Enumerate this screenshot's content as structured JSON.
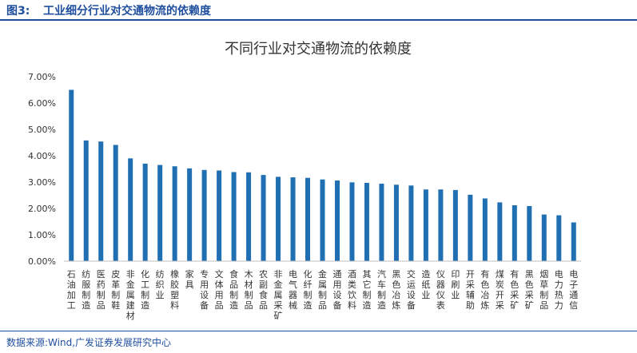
{
  "figure": {
    "label": "图3:",
    "title": "工业细分行业对交通物流的依赖度",
    "source": "数据来源:Wind,广发证券发展研究中心"
  },
  "colors": {
    "bar": "#1F6FB2",
    "header": "#1F4E9E",
    "axis": "#BFBFBF"
  },
  "chart_data": {
    "type": "bar",
    "title": "不同行业对交通物流的依赖度",
    "xlabel": "",
    "ylabel": "",
    "ylim": [
      0,
      0.07
    ],
    "yticks": [
      "0.00%",
      "1.00%",
      "2.00%",
      "3.00%",
      "4.00%",
      "5.00%",
      "6.00%",
      "7.00%"
    ],
    "grid": false,
    "legend": "none",
    "categories": [
      "石油加工",
      "纺服制造",
      "医药制品",
      "皮革制鞋",
      "非金属建材",
      "化工制造",
      "纺织业",
      "橡胶塑料",
      "家具",
      "专用设备",
      "文体用品",
      "食品制造",
      "木材制品",
      "农副食品",
      "非金属采矿",
      "电气器械",
      "化纤制造",
      "金属制品",
      "通用设备",
      "酒类饮料",
      "其它制造",
      "汽车制造",
      "黑色冶炼",
      "交运设备",
      "造纸业",
      "仪器仪表",
      "印刷业",
      "开采辅助",
      "有色冶炼",
      "煤炭开采",
      "有色采矿",
      "黑色采矿",
      "烟草制品",
      "电力热力",
      "电子通信"
    ],
    "values": [
      0.065,
      0.0458,
      0.0454,
      0.0441,
      0.039,
      0.037,
      0.0365,
      0.036,
      0.0352,
      0.0346,
      0.0344,
      0.0338,
      0.0337,
      0.0327,
      0.032,
      0.0318,
      0.0316,
      0.031,
      0.0306,
      0.0299,
      0.0297,
      0.0294,
      0.029,
      0.0287,
      0.0272,
      0.0272,
      0.027,
      0.0252,
      0.0238,
      0.0223,
      0.0212,
      0.0209,
      0.0177,
      0.0174,
      0.0147
    ]
  }
}
